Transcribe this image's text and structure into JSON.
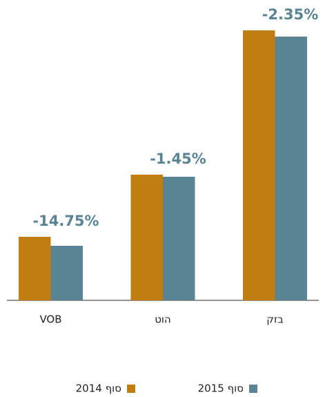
{
  "chart_data": {
    "type": "bar",
    "categories": [
      "VOB",
      "הוט",
      "בזק"
    ],
    "annotations": [
      "-14.75%",
      "-1.45%",
      "-2.35%"
    ],
    "series": [
      {
        "name": "סוף 2014",
        "color": "#c17d11",
        "values": [
          92,
          182,
          391
        ]
      },
      {
        "name": "סוף 2015",
        "color": "#5a8494",
        "values": [
          79,
          179,
          382
        ]
      }
    ],
    "ylim": [
      0,
      400
    ]
  }
}
